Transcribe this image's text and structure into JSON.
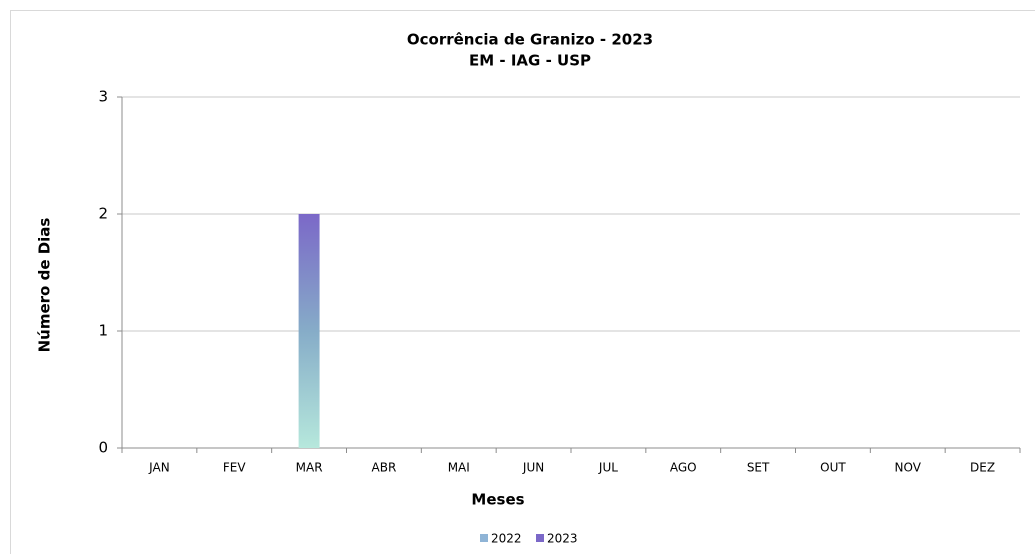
{
  "chart_data": {
    "type": "bar",
    "title": "Ocorrência de Granizo - 2023",
    "subtitle": "EM - IAG - USP",
    "x_label": "Meses",
    "y_label": "Número de Dias",
    "categories": [
      "JAN",
      "FEV",
      "MAR",
      "ABR",
      "MAI",
      "JUN",
      "JUL",
      "AGO",
      "SET",
      "OUT",
      "NOV",
      "DEZ"
    ],
    "series": [
      {
        "name": "2022",
        "color": "#8fb4d6",
        "values": [
          0,
          0,
          0,
          0,
          0,
          0,
          0,
          0,
          0,
          0,
          0,
          0
        ]
      },
      {
        "name": "2023",
        "color": "#7b68c8",
        "values": [
          0,
          0,
          2,
          0,
          0,
          0,
          0,
          0,
          0,
          0,
          0,
          0
        ]
      }
    ],
    "ylim": [
      0,
      3
    ],
    "yticks": [
      0,
      1,
      2,
      3
    ],
    "grid": true,
    "legend": "bottom"
  }
}
